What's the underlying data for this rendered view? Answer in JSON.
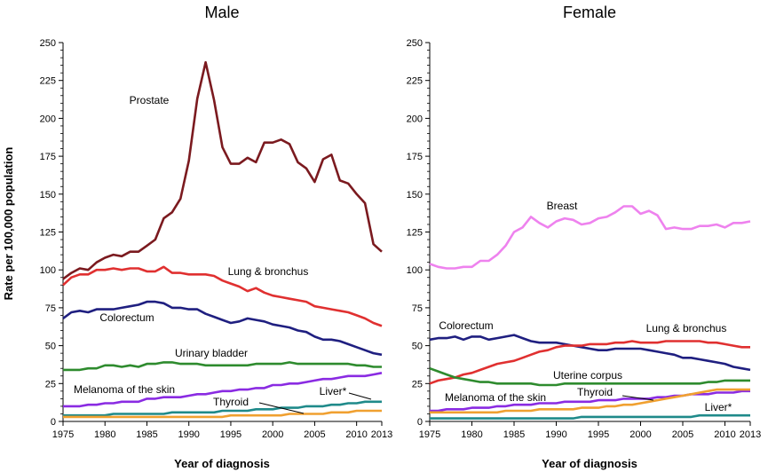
{
  "shared": {
    "ylabel": "Rate per 100,000 population",
    "xlabel": "Year of diagnosis",
    "xticks": [
      1975,
      1980,
      1985,
      1990,
      1995,
      2000,
      2005,
      2010,
      2013
    ],
    "yticks": [
      0,
      25,
      50,
      75,
      100,
      125,
      150,
      175,
      200,
      225,
      250
    ]
  },
  "chart_data": [
    {
      "type": "line",
      "title": "Male",
      "xlabel": "Year of diagnosis",
      "ylabel": "Rate per 100,000 population",
      "xlim": [
        1975,
        2013
      ],
      "ylim": [
        0,
        250
      ],
      "x": [
        1975,
        1976,
        1977,
        1978,
        1979,
        1980,
        1981,
        1982,
        1983,
        1984,
        1985,
        1986,
        1987,
        1988,
        1989,
        1990,
        1991,
        1992,
        1993,
        1994,
        1995,
        1996,
        1997,
        1998,
        1999,
        2000,
        2001,
        2002,
        2003,
        2004,
        2005,
        2006,
        2007,
        2008,
        2009,
        2010,
        2011,
        2012,
        2013
      ],
      "series": [
        {
          "name": "Prostate",
          "color": "#7b1a1f",
          "values": [
            94,
            98,
            101,
            100,
            105,
            108,
            110,
            109,
            112,
            112,
            116,
            120,
            134,
            138,
            147,
            172,
            213,
            237,
            212,
            181,
            170,
            170,
            174,
            171,
            184,
            184,
            186,
            183,
            171,
            167,
            158,
            173,
            176,
            159,
            157,
            150,
            144,
            117,
            112
          ]
        },
        {
          "name": "Lung & bronchus",
          "color": "#e03030",
          "values": [
            90,
            95,
            97,
            97,
            100,
            100,
            101,
            100,
            101,
            101,
            99,
            99,
            102,
            98,
            98,
            97,
            97,
            97,
            96,
            93,
            91,
            89,
            86,
            88,
            85,
            83,
            82,
            81,
            80,
            79,
            76,
            75,
            74,
            73,
            72,
            70,
            68,
            65,
            63
          ]
        },
        {
          "name": "Colorectum",
          "color": "#1f1f80",
          "values": [
            68,
            72,
            73,
            72,
            74,
            74,
            74,
            75,
            76,
            77,
            79,
            79,
            78,
            75,
            75,
            74,
            74,
            71,
            69,
            67,
            65,
            66,
            68,
            67,
            66,
            64,
            63,
            62,
            60,
            59,
            56,
            54,
            54,
            53,
            51,
            49,
            47,
            45,
            44
          ]
        },
        {
          "name": "Urinary bladder",
          "color": "#2e8b2e",
          "values": [
            34,
            34,
            34,
            35,
            35,
            37,
            37,
            36,
            37,
            36,
            38,
            38,
            39,
            39,
            38,
            38,
            38,
            37,
            37,
            37,
            37,
            37,
            37,
            38,
            38,
            38,
            38,
            39,
            38,
            38,
            38,
            38,
            38,
            38,
            38,
            37,
            37,
            36,
            36
          ]
        },
        {
          "name": "Melanoma of the skin",
          "color": "#8a2be2",
          "values": [
            10,
            10,
            10,
            11,
            11,
            12,
            12,
            13,
            13,
            13,
            15,
            15,
            16,
            16,
            16,
            17,
            18,
            18,
            19,
            20,
            20,
            21,
            21,
            22,
            22,
            24,
            24,
            25,
            25,
            26,
            27,
            28,
            28,
            29,
            30,
            30,
            30,
            31,
            32
          ]
        },
        {
          "name": "Liver*",
          "color": "#1f8a8a",
          "values": [
            4,
            4,
            4,
            4,
            4,
            4,
            5,
            5,
            5,
            5,
            5,
            5,
            5,
            6,
            6,
            6,
            6,
            6,
            6,
            7,
            7,
            7,
            7,
            8,
            8,
            8,
            9,
            9,
            9,
            10,
            10,
            10,
            11,
            11,
            12,
            12,
            13,
            13,
            13
          ]
        },
        {
          "name": "Thyroid",
          "color": "#f0a030",
          "values": [
            3,
            3,
            3,
            3,
            3,
            3,
            3,
            3,
            3,
            3,
            3,
            3,
            3,
            3,
            3,
            3,
            3,
            3,
            3,
            3,
            4,
            4,
            4,
            4,
            4,
            4,
            4,
            5,
            5,
            5,
            5,
            5,
            6,
            6,
            6,
            7,
            7,
            7,
            7
          ]
        }
      ],
      "labels": [
        "Prostate",
        "Lung & bronchus",
        "Colorectum",
        "Urinary bladder",
        "Melanoma of the skin",
        "Liver*",
        "Thyroid"
      ]
    },
    {
      "type": "line",
      "title": "Female",
      "xlabel": "Year of diagnosis",
      "xlim": [
        1975,
        2013
      ],
      "ylim": [
        0,
        250
      ],
      "x": [
        1975,
        1976,
        1977,
        1978,
        1979,
        1980,
        1981,
        1982,
        1983,
        1984,
        1985,
        1986,
        1987,
        1988,
        1989,
        1990,
        1991,
        1992,
        1993,
        1994,
        1995,
        1996,
        1997,
        1998,
        1999,
        2000,
        2001,
        2002,
        2003,
        2004,
        2005,
        2006,
        2007,
        2008,
        2009,
        2010,
        2011,
        2012,
        2013
      ],
      "series": [
        {
          "name": "Breast",
          "color": "#ee82ee",
          "values": [
            104,
            102,
            101,
            101,
            102,
            102,
            106,
            106,
            110,
            116,
            125,
            128,
            135,
            131,
            128,
            132,
            134,
            133,
            130,
            131,
            134,
            135,
            138,
            142,
            142,
            137,
            139,
            136,
            127,
            128,
            127,
            127,
            129,
            129,
            130,
            128,
            131,
            131,
            132
          ]
        },
        {
          "name": "Colorectum",
          "color": "#1f1f80",
          "values": [
            54,
            55,
            55,
            56,
            54,
            56,
            56,
            54,
            55,
            56,
            57,
            55,
            53,
            52,
            52,
            52,
            51,
            50,
            49,
            48,
            47,
            47,
            48,
            48,
            48,
            48,
            47,
            46,
            45,
            44,
            42,
            42,
            41,
            40,
            39,
            38,
            36,
            35,
            34
          ]
        },
        {
          "name": "Lung & bronchus",
          "color": "#e03030",
          "values": [
            25,
            27,
            28,
            29,
            31,
            32,
            34,
            36,
            38,
            39,
            40,
            42,
            44,
            46,
            47,
            49,
            50,
            50,
            50,
            51,
            51,
            51,
            52,
            52,
            53,
            52,
            52,
            52,
            53,
            53,
            53,
            53,
            53,
            52,
            52,
            51,
            50,
            49,
            49
          ]
        },
        {
          "name": "Uterine corpus",
          "color": "#2e8b2e",
          "values": [
            35,
            33,
            31,
            29,
            28,
            27,
            26,
            26,
            25,
            25,
            25,
            25,
            25,
            24,
            24,
            24,
            25,
            25,
            25,
            25,
            25,
            25,
            25,
            25,
            25,
            25,
            25,
            25,
            25,
            25,
            25,
            25,
            25,
            26,
            26,
            27,
            27,
            27,
            27
          ]
        },
        {
          "name": "Melanoma of the skin",
          "color": "#8a2be2",
          "values": [
            7,
            7,
            8,
            8,
            8,
            9,
            9,
            9,
            10,
            10,
            11,
            11,
            11,
            12,
            12,
            12,
            13,
            13,
            13,
            13,
            14,
            14,
            14,
            15,
            15,
            15,
            15,
            16,
            16,
            17,
            17,
            18,
            18,
            18,
            19,
            19,
            19,
            20,
            20
          ]
        },
        {
          "name": "Thyroid",
          "color": "#f0a030",
          "values": [
            6,
            6,
            6,
            6,
            6,
            6,
            6,
            6,
            6,
            7,
            7,
            7,
            7,
            8,
            8,
            8,
            8,
            8,
            9,
            9,
            9,
            10,
            10,
            11,
            11,
            12,
            13,
            14,
            15,
            16,
            17,
            18,
            19,
            20,
            21,
            21,
            21,
            21,
            21
          ]
        },
        {
          "name": "Liver*",
          "color": "#1f8a8a",
          "values": [
            2,
            2,
            2,
            2,
            2,
            2,
            2,
            2,
            2,
            2,
            2,
            2,
            2,
            2,
            2,
            2,
            2,
            2,
            3,
            3,
            3,
            3,
            3,
            3,
            3,
            3,
            3,
            3,
            3,
            3,
            3,
            3,
            4,
            4,
            4,
            4,
            4,
            4,
            4
          ]
        }
      ],
      "labels": [
        "Breast",
        "Colorectum",
        "Lung & bronchus",
        "Uterine corpus",
        "Melanoma of the skin",
        "Thyroid",
        "Liver*"
      ]
    }
  ]
}
